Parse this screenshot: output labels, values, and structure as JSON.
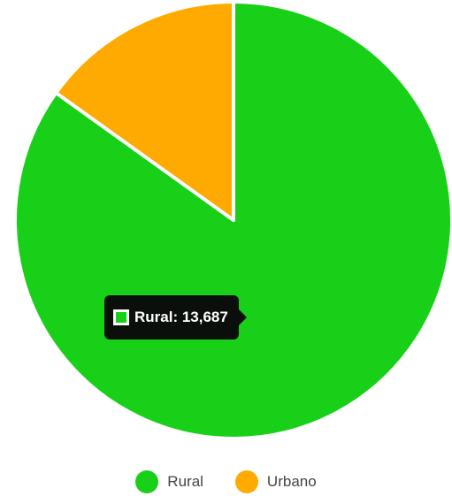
{
  "chart_data": {
    "type": "pie",
    "categories": [
      "Rural",
      "Urbano"
    ],
    "values": [
      13687,
      2433
    ],
    "colors": [
      "#18d018",
      "#ffaa00"
    ],
    "start_angle_deg": 0,
    "direction": "clockwise",
    "legend": {
      "position": "bottom"
    },
    "tooltip": {
      "category": "Rural",
      "label": "Rural: 13,687"
    }
  }
}
